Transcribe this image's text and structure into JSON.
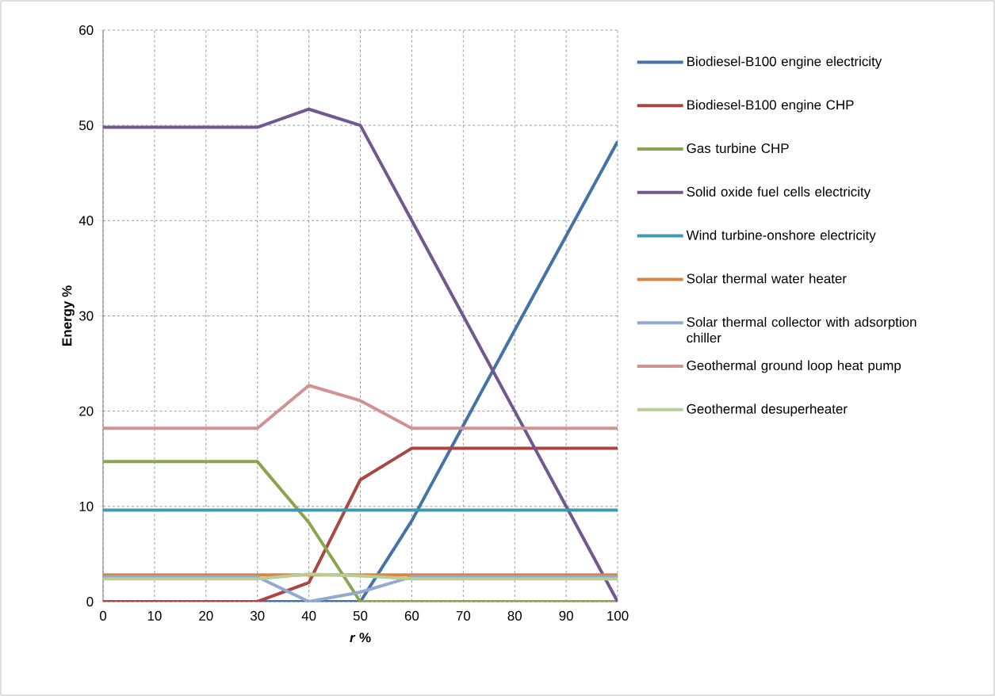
{
  "chart_data": {
    "type": "line",
    "xlabel": "*r*  %",
    "ylabel": "Energy  %",
    "x": [
      0,
      10,
      20,
      30,
      40,
      50,
      60,
      70,
      80,
      90,
      100
    ],
    "xlim": [
      0,
      100
    ],
    "xticks": [
      0,
      10,
      20,
      30,
      40,
      50,
      60,
      70,
      80,
      90,
      100
    ],
    "ylim": [
      0,
      60
    ],
    "yticks": [
      0,
      10,
      20,
      30,
      40,
      50,
      60
    ],
    "grid": true,
    "legend": "right",
    "line_style": "solid",
    "series": [
      {
        "name": "Biodiesel-B100 engine electricity",
        "color": "#4572a7",
        "values": [
          null,
          null,
          null,
          0,
          0,
          0,
          8.5,
          18.5,
          28.5,
          38.4,
          48.3
        ]
      },
      {
        "name": "Biodiesel-B100 engine CHP",
        "color": "#aa4643",
        "values": [
          0,
          0,
          0,
          0,
          2,
          12.8,
          16.1,
          16.1,
          16.1,
          16.1,
          16.1
        ]
      },
      {
        "name": "Gas turbine CHP",
        "color": "#89a54e",
        "values": [
          14.7,
          14.7,
          14.7,
          14.7,
          8.3,
          0,
          0,
          0,
          0,
          0,
          0
        ]
      },
      {
        "name": "Solid oxide fuel cells electricity",
        "color": "#71588f",
        "values": [
          49.8,
          49.8,
          49.8,
          49.8,
          51.7,
          50,
          40,
          30,
          20,
          10,
          0
        ]
      },
      {
        "name": "Wind turbine-onshore electricity",
        "color": "#4198af",
        "values": [
          9.6,
          9.6,
          9.6,
          9.6,
          9.6,
          9.6,
          9.6,
          9.6,
          9.6,
          9.6,
          9.6
        ]
      },
      {
        "name": "Solar thermal water heater",
        "color": "#db843d",
        "values": [
          2.8,
          2.8,
          2.8,
          2.8,
          2.8,
          2.8,
          2.8,
          2.8,
          2.8,
          2.8,
          2.8
        ]
      },
      {
        "name": "Solar thermal collector with adsorption chiller",
        "color": "#93a9cf",
        "values": [
          2.6,
          2.6,
          2.6,
          2.6,
          0,
          1,
          2.6,
          2.6,
          2.6,
          2.6,
          2.6
        ]
      },
      {
        "name": "Geothermal ground loop heat pump",
        "color": "#d19392",
        "values": [
          18.2,
          18.2,
          18.2,
          18.2,
          22.7,
          21.1,
          18.2,
          18.2,
          18.2,
          18.2,
          18.2
        ]
      },
      {
        "name": "Geothermal desuperheater",
        "color": "#b9cd96",
        "values": [
          2.4,
          2.4,
          2.4,
          2.4,
          2.9,
          2.7,
          2.4,
          2.4,
          2.4,
          2.4,
          2.4
        ]
      }
    ]
  }
}
